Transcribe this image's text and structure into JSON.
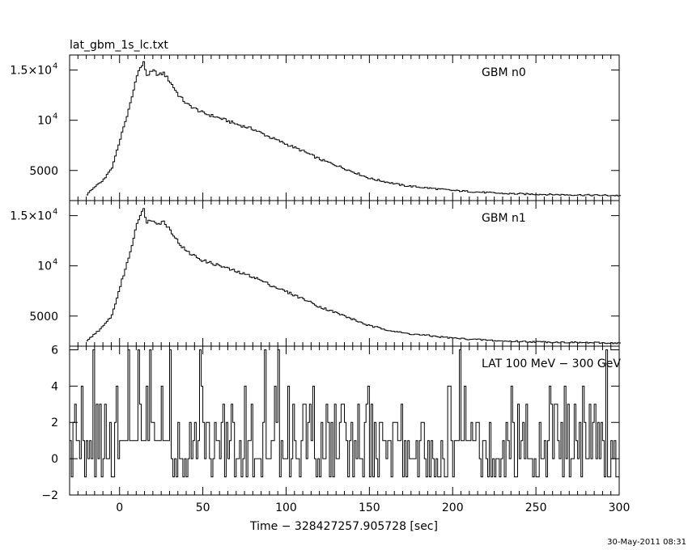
{
  "chart_data": [
    {
      "type": "line",
      "title": "lat_gbm_1s_lc.txt",
      "annotation": "GBM n0",
      "xlim": [
        -30,
        300
      ],
      "ylim": [
        2000,
        16500
      ],
      "yticks": [
        {
          "value": 15000,
          "mant": "1.5×10",
          "exp": "4"
        },
        {
          "value": 10000,
          "mant": "10",
          "exp": "4"
        },
        {
          "value": 5000,
          "mant": "5000",
          "exp": ""
        }
      ],
      "x": [
        -20,
        -15,
        -10,
        -5,
        0,
        5,
        8,
        10,
        12,
        14,
        16,
        18,
        20,
        23,
        26,
        30,
        35,
        40,
        50,
        60,
        70,
        80,
        90,
        100,
        110,
        120,
        130,
        150,
        170,
        200,
        230,
        260,
        300
      ],
      "y": [
        2600,
        3400,
        4100,
        5200,
        8200,
        11000,
        13000,
        14600,
        15200,
        15700,
        14500,
        14700,
        14900,
        14500,
        14700,
        13800,
        12500,
        11600,
        10700,
        10200,
        9600,
        9100,
        8300,
        7600,
        6900,
        6100,
        5500,
        4200,
        3500,
        3000,
        2700,
        2600,
        2500
      ]
    },
    {
      "type": "line",
      "annotation": "GBM n1",
      "xlim": [
        -30,
        300
      ],
      "ylim": [
        2000,
        16500
      ],
      "yticks": [
        {
          "value": 15000,
          "mant": "1.5×10",
          "exp": "4"
        },
        {
          "value": 10000,
          "mant": "10",
          "exp": "4"
        },
        {
          "value": 5000,
          "mant": "5000",
          "exp": ""
        }
      ],
      "x": [
        -20,
        -15,
        -10,
        -5,
        0,
        5,
        8,
        10,
        12,
        14,
        16,
        18,
        20,
        23,
        26,
        30,
        35,
        40,
        50,
        60,
        70,
        80,
        90,
        100,
        110,
        120,
        130,
        150,
        170,
        200,
        230,
        260,
        300
      ],
      "y": [
        2500,
        3300,
        4000,
        5100,
        8000,
        10800,
        12800,
        14400,
        15000,
        15600,
        14400,
        14500,
        14600,
        14200,
        14400,
        13600,
        12300,
        11400,
        10500,
        10000,
        9400,
        8900,
        8100,
        7400,
        6700,
        5900,
        5300,
        4000,
        3300,
        2800,
        2500,
        2400,
        2300
      ]
    },
    {
      "type": "line",
      "annotation": "LAT 100 MeV − 300 GeV",
      "xlabel": "Time − 328427257.905728 [sec]",
      "xlim": [
        -30,
        300
      ],
      "ylim": [
        -2,
        6.2
      ],
      "yticks": [
        {
          "value": 6,
          "mant": "6",
          "exp": ""
        },
        {
          "value": 4,
          "mant": "4",
          "exp": ""
        },
        {
          "value": 2,
          "mant": "2",
          "exp": ""
        },
        {
          "value": 0,
          "mant": "0",
          "exp": ""
        },
        {
          "value": -2,
          "mant": "−2",
          "exp": ""
        }
      ],
      "xticks": [
        0,
        50,
        100,
        150,
        200,
        250,
        300
      ],
      "x": [
        -30,
        300
      ],
      "y": [
        0,
        0
      ]
    }
  ],
  "timestamp": "30-May-2011 08:31"
}
